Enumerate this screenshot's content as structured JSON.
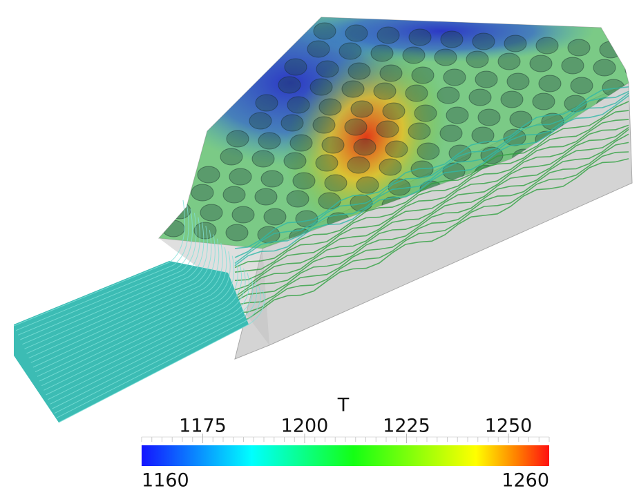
{
  "colorbar": {
    "title": "T",
    "range": [
      1160,
      1260
    ],
    "ticks": [
      1175,
      1200,
      1225,
      1250
    ]
  }
}
